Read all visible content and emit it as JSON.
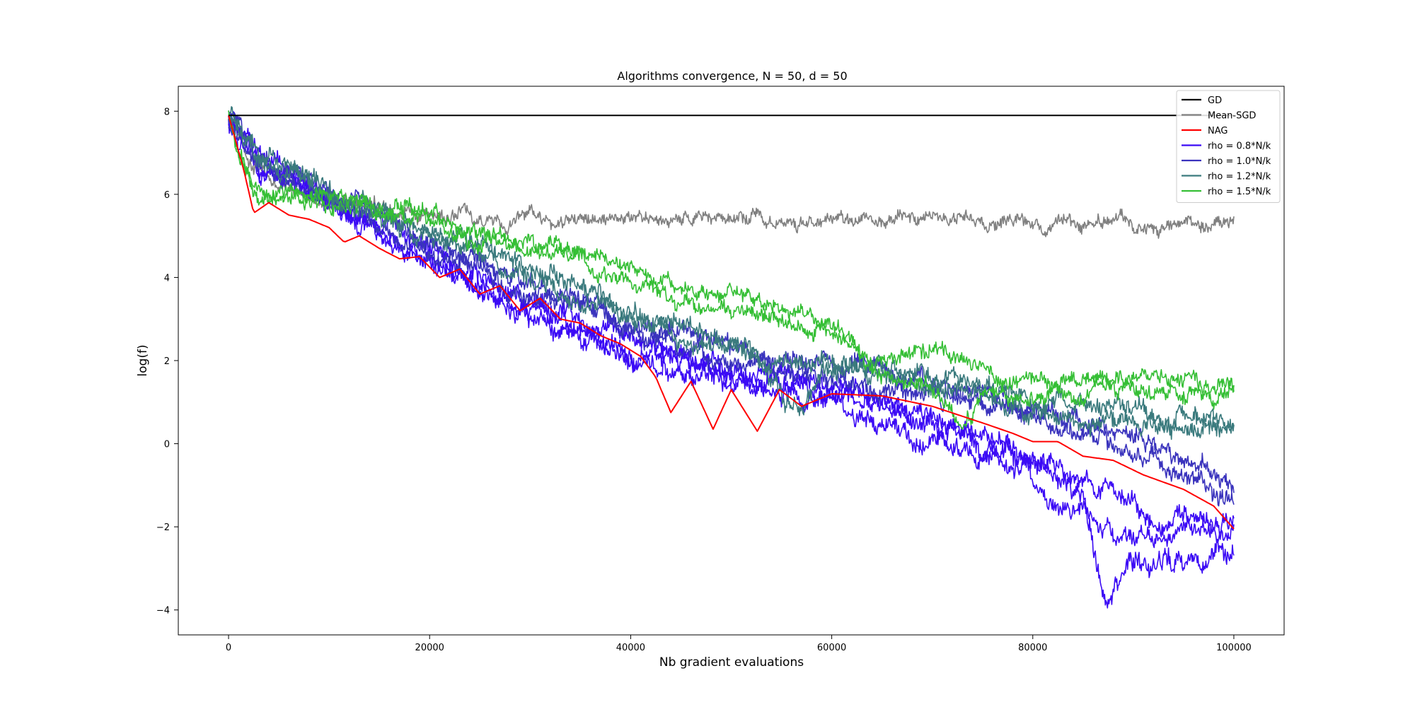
{
  "chart_data": {
    "type": "line",
    "title": "Algorithms convergence, N = 50, d = 50",
    "xlabel": "Nb gradient evaluations",
    "ylabel": "log(f)",
    "xlim": [
      -5000,
      105000
    ],
    "ylim": [
      -4.6,
      8.6
    ],
    "xticks": [
      0,
      20000,
      40000,
      60000,
      80000,
      100000
    ],
    "yticks": [
      -4,
      -2,
      0,
      2,
      4,
      6,
      8
    ],
    "ytick_labels": [
      "−4",
      "−2",
      "0",
      "2",
      "4",
      "6",
      "8"
    ],
    "grid": false,
    "legend_position": "top-right",
    "series": [
      {
        "name": "GD",
        "color": "#000000",
        "points": [
          [
            0,
            7.9
          ],
          [
            100000,
            7.9
          ]
        ]
      },
      {
        "name": "Mean-SGD",
        "color": "#808080",
        "noise": 0.22,
        "points": [
          [
            0,
            7.9
          ],
          [
            2000,
            6.8
          ],
          [
            5000,
            6.1
          ],
          [
            10000,
            5.8
          ],
          [
            15000,
            5.65
          ],
          [
            20000,
            5.55
          ],
          [
            30000,
            5.45
          ],
          [
            40000,
            5.4
          ],
          [
            60000,
            5.35
          ],
          [
            80000,
            5.35
          ],
          [
            100000,
            5.3
          ]
        ]
      },
      {
        "name": "NAG",
        "color": "#ff0000",
        "noise": 0,
        "points": [
          [
            0,
            7.9
          ],
          [
            1500,
            6.6
          ],
          [
            2500,
            5.55
          ],
          [
            4000,
            5.8
          ],
          [
            6000,
            5.5
          ],
          [
            8000,
            5.4
          ],
          [
            10000,
            5.2
          ],
          [
            11500,
            4.85
          ],
          [
            13000,
            5.0
          ],
          [
            15000,
            4.7
          ],
          [
            17000,
            4.45
          ],
          [
            19000,
            4.5
          ],
          [
            21000,
            4.0
          ],
          [
            23000,
            4.2
          ],
          [
            25000,
            3.6
          ],
          [
            27000,
            3.8
          ],
          [
            29000,
            3.2
          ],
          [
            31000,
            3.5
          ],
          [
            33000,
            3.0
          ],
          [
            35000,
            2.9
          ],
          [
            37000,
            2.6
          ],
          [
            39000,
            2.4
          ],
          [
            41000,
            2.1
          ],
          [
            42500,
            1.6
          ],
          [
            44000,
            0.75
          ],
          [
            46000,
            1.5
          ],
          [
            48200,
            0.35
          ],
          [
            50000,
            1.3
          ],
          [
            52600,
            0.3
          ],
          [
            54800,
            1.3
          ],
          [
            57000,
            0.9
          ],
          [
            60000,
            1.2
          ],
          [
            65000,
            1.15
          ],
          [
            70000,
            0.9
          ],
          [
            75000,
            0.5
          ],
          [
            78000,
            0.25
          ],
          [
            80000,
            0.05
          ],
          [
            82500,
            0.05
          ],
          [
            85000,
            -0.3
          ],
          [
            88000,
            -0.4
          ],
          [
            91000,
            -0.75
          ],
          [
            95000,
            -1.1
          ],
          [
            98000,
            -1.5
          ],
          [
            100000,
            -2.05
          ]
        ]
      },
      {
        "name": "rho = 0.8*N/k",
        "color": "#3b0af5",
        "noise": 0.35,
        "points": [
          [
            0,
            7.9
          ],
          [
            3000,
            6.8
          ],
          [
            10000,
            5.9
          ],
          [
            20000,
            4.6
          ],
          [
            30000,
            3.4
          ],
          [
            40000,
            2.2
          ],
          [
            50000,
            1.7
          ],
          [
            60000,
            1.2
          ],
          [
            70000,
            0.5
          ],
          [
            80000,
            -0.5
          ],
          [
            85000,
            -1.3
          ],
          [
            87500,
            -3.9
          ],
          [
            90000,
            -2.8
          ],
          [
            95000,
            -2.7
          ],
          [
            100000,
            -2.5
          ]
        ]
      },
      {
        "name": "rho = 0.8*N/k",
        "color": "#3b0af5",
        "noise": 0.3,
        "points": [
          [
            0,
            7.8
          ],
          [
            3000,
            6.7
          ],
          [
            10000,
            5.8
          ],
          [
            20000,
            4.4
          ],
          [
            30000,
            3.0
          ],
          [
            40000,
            2.0
          ],
          [
            50000,
            1.5
          ],
          [
            60000,
            0.9
          ],
          [
            70000,
            0.1
          ],
          [
            80000,
            -0.9
          ],
          [
            85000,
            -1.8
          ],
          [
            88000,
            -2.4
          ],
          [
            92000,
            -2.2
          ],
          [
            100000,
            -2.1
          ]
        ]
      },
      {
        "name": "rho = 0.8*N/k",
        "color": "#3b0af5",
        "noise": 0.3,
        "points": [
          [
            0,
            7.7
          ],
          [
            3000,
            6.6
          ],
          [
            10000,
            5.7
          ],
          [
            20000,
            4.5
          ],
          [
            30000,
            3.2
          ],
          [
            40000,
            2.5
          ],
          [
            50000,
            1.9
          ],
          [
            60000,
            1.3
          ],
          [
            70000,
            0.7
          ],
          [
            80000,
            -0.3
          ],
          [
            84000,
            -0.9
          ],
          [
            88000,
            -1.4
          ],
          [
            92000,
            -1.8
          ],
          [
            100000,
            -1.9
          ]
        ]
      },
      {
        "name": "rho = 1.0*N/k",
        "color": "#3a33bd",
        "noise": 0.3,
        "points": [
          [
            0,
            7.8
          ],
          [
            3000,
            6.8
          ],
          [
            10000,
            6.0
          ],
          [
            20000,
            4.9
          ],
          [
            30000,
            3.8
          ],
          [
            40000,
            2.9
          ],
          [
            50000,
            2.3
          ],
          [
            60000,
            1.9
          ],
          [
            70000,
            1.5
          ],
          [
            80000,
            0.9
          ],
          [
            90000,
            0.0
          ],
          [
            100000,
            -0.9
          ]
        ]
      },
      {
        "name": "rho = 1.0*N/k",
        "color": "#3a33bd",
        "noise": 0.3,
        "points": [
          [
            0,
            7.7
          ],
          [
            3000,
            6.7
          ],
          [
            10000,
            5.9
          ],
          [
            20000,
            4.7
          ],
          [
            30000,
            3.6
          ],
          [
            40000,
            2.7
          ],
          [
            50000,
            2.1
          ],
          [
            60000,
            1.6
          ],
          [
            70000,
            1.1
          ],
          [
            80000,
            0.6
          ],
          [
            90000,
            -0.3
          ],
          [
            100000,
            -1.2
          ]
        ]
      },
      {
        "name": "rho = 1.2*N/k",
        "color": "#3a7a7d",
        "noise": 0.3,
        "points": [
          [
            0,
            7.9
          ],
          [
            3000,
            6.9
          ],
          [
            10000,
            6.1
          ],
          [
            20000,
            5.1
          ],
          [
            30000,
            4.2
          ],
          [
            40000,
            3.2
          ],
          [
            50000,
            2.5
          ],
          [
            57000,
            0.85
          ],
          [
            60000,
            1.9
          ],
          [
            70000,
            1.6
          ],
          [
            80000,
            1.1
          ],
          [
            90000,
            0.8
          ],
          [
            100000,
            0.6
          ]
        ]
      },
      {
        "name": "rho = 1.2*N/k",
        "color": "#3a7a7d",
        "noise": 0.3,
        "points": [
          [
            0,
            7.8
          ],
          [
            3000,
            6.9
          ],
          [
            10000,
            6.0
          ],
          [
            20000,
            5.0
          ],
          [
            30000,
            4.0
          ],
          [
            40000,
            3.0
          ],
          [
            50000,
            2.3
          ],
          [
            60000,
            1.8
          ],
          [
            70000,
            1.4
          ],
          [
            80000,
            0.9
          ],
          [
            90000,
            0.5
          ],
          [
            100000,
            0.3
          ]
        ]
      },
      {
        "name": "rho = 1.5*N/k",
        "color": "#35bf35",
        "noise": 0.25,
        "points": [
          [
            0,
            8.0
          ],
          [
            1000,
            6.9
          ],
          [
            3000,
            6.1
          ],
          [
            10000,
            5.9
          ],
          [
            20000,
            5.5
          ],
          [
            28000,
            5.0
          ],
          [
            34000,
            4.8
          ],
          [
            40000,
            4.2
          ],
          [
            45000,
            3.8
          ],
          [
            50000,
            3.6
          ],
          [
            55000,
            3.4
          ],
          [
            60000,
            2.9
          ],
          [
            65000,
            2.0
          ],
          [
            70000,
            2.2
          ],
          [
            75000,
            1.7
          ],
          [
            80000,
            1.6
          ],
          [
            85000,
            1.6
          ],
          [
            90000,
            1.7
          ],
          [
            95000,
            1.6
          ],
          [
            100000,
            1.4
          ]
        ]
      },
      {
        "name": "rho = 1.5*N/k",
        "color": "#35bf35",
        "noise": 0.25,
        "points": [
          [
            0,
            7.9
          ],
          [
            1000,
            6.8
          ],
          [
            3000,
            6.0
          ],
          [
            10000,
            5.8
          ],
          [
            20000,
            5.3
          ],
          [
            28000,
            4.7
          ],
          [
            34000,
            4.5
          ],
          [
            40000,
            3.9
          ],
          [
            45000,
            3.4
          ],
          [
            50000,
            3.2
          ],
          [
            55000,
            3.0
          ],
          [
            60000,
            2.6
          ],
          [
            65000,
            1.7
          ],
          [
            70000,
            1.3
          ],
          [
            73000,
            0.4
          ],
          [
            75000,
            1.3
          ],
          [
            80000,
            1.2
          ],
          [
            85000,
            1.2
          ],
          [
            90000,
            1.3
          ],
          [
            95000,
            1.2
          ],
          [
            100000,
            1.1
          ]
        ]
      }
    ],
    "legend": [
      {
        "label": "GD",
        "color": "#000000"
      },
      {
        "label": "Mean-SGD",
        "color": "#808080"
      },
      {
        "label": "NAG",
        "color": "#ff0000"
      },
      {
        "label": "rho = 0.8*N/k",
        "color": "#3b0af5"
      },
      {
        "label": "rho = 1.0*N/k",
        "color": "#3a33bd"
      },
      {
        "label": "rho = 1.2*N/k",
        "color": "#3a7a7d"
      },
      {
        "label": "rho = 1.5*N/k",
        "color": "#35bf35"
      }
    ]
  }
}
